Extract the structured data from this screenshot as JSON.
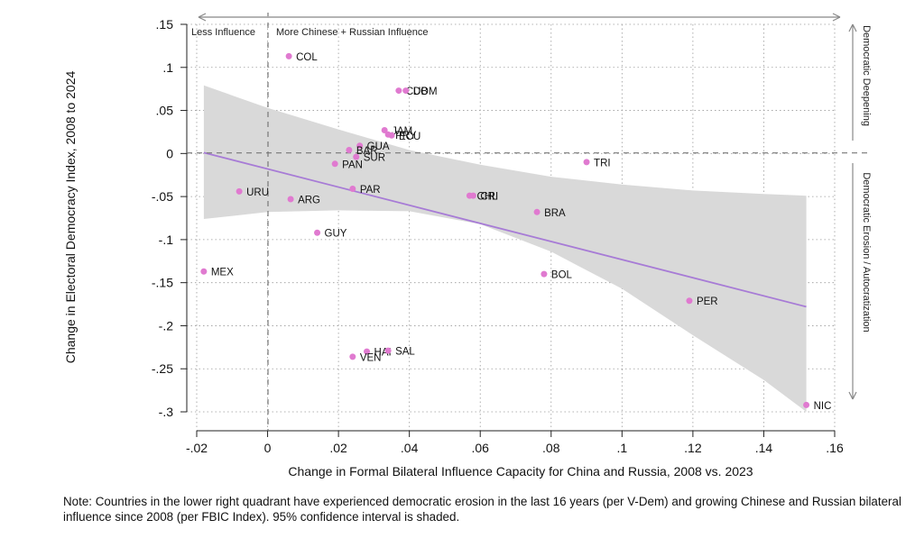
{
  "chart_data": {
    "type": "scatter",
    "xlabel": "Change in Formal Bilateral Influence Capacity for China and Russia, 2008 vs. 2023",
    "ylabel": "Change in Electoral Democracy Index, 2008 to 2024",
    "xlim": [
      -0.02,
      0.16
    ],
    "ylim": [
      -0.3,
      0.15
    ],
    "x_ticks": [
      {
        "value": -0.02,
        "label": "-.02"
      },
      {
        "value": 0,
        "label": "0"
      },
      {
        "value": 0.02,
        "label": ".02"
      },
      {
        "value": 0.04,
        "label": ".04"
      },
      {
        "value": 0.06,
        "label": ".06"
      },
      {
        "value": 0.08,
        "label": ".08"
      },
      {
        "value": 0.1,
        "label": ".1"
      },
      {
        "value": 0.12,
        "label": ".12"
      },
      {
        "value": 0.14,
        "label": ".14"
      },
      {
        "value": 0.16,
        "label": ".16"
      }
    ],
    "y_ticks": [
      {
        "value": 0.15,
        "label": ".15"
      },
      {
        "value": 0.1,
        "label": ".1"
      },
      {
        "value": 0.05,
        "label": ".05"
      },
      {
        "value": 0,
        "label": "0"
      },
      {
        "value": -0.05,
        "label": "-.05"
      },
      {
        "value": -0.1,
        "label": "-.1"
      },
      {
        "value": -0.15,
        "label": "-.15"
      },
      {
        "value": -0.2,
        "label": "-.2"
      },
      {
        "value": -0.25,
        "label": "-.25"
      },
      {
        "value": -0.3,
        "label": "-.3"
      }
    ],
    "grid": true,
    "points": [
      {
        "label": "COL",
        "x": 0.006,
        "y": 0.113
      },
      {
        "label": "CUB",
        "x": 0.037,
        "y": 0.073
      },
      {
        "label": "DOM",
        "x": 0.039,
        "y": 0.073
      },
      {
        "label": "JAM",
        "x": 0.033,
        "y": 0.027
      },
      {
        "label": "PRY",
        "x": 0.034,
        "y": 0.022
      },
      {
        "label": "ECU",
        "x": 0.035,
        "y": 0.021
      },
      {
        "label": "GUA",
        "x": 0.026,
        "y": 0.009
      },
      {
        "label": "BAR",
        "x": 0.023,
        "y": 0.004
      },
      {
        "label": "SUR",
        "x": 0.025,
        "y": -0.004
      },
      {
        "label": "PAN",
        "x": 0.019,
        "y": -0.012
      },
      {
        "label": "TRI",
        "x": 0.09,
        "y": -0.01
      },
      {
        "label": "URU",
        "x": -0.008,
        "y": -0.044
      },
      {
        "label": "ARG",
        "x": 0.0065,
        "y": -0.053
      },
      {
        "label": "PAR",
        "x": 0.024,
        "y": -0.041
      },
      {
        "label": "CHL",
        "x": 0.057,
        "y": -0.049
      },
      {
        "label": "CRI",
        "x": 0.058,
        "y": -0.049
      },
      {
        "label": "BRA",
        "x": 0.076,
        "y": -0.068
      },
      {
        "label": "GUY",
        "x": 0.014,
        "y": -0.092
      },
      {
        "label": "MEX",
        "x": -0.018,
        "y": -0.137
      },
      {
        "label": "BOL",
        "x": 0.078,
        "y": -0.14
      },
      {
        "label": "PER",
        "x": 0.119,
        "y": -0.171
      },
      {
        "label": "HAI",
        "x": 0.028,
        "y": -0.23
      },
      {
        "label": "SAL",
        "x": 0.034,
        "y": -0.229
      },
      {
        "label": "VEN",
        "x": 0.024,
        "y": -0.236
      },
      {
        "label": "NIC",
        "x": 0.152,
        "y": -0.292
      }
    ],
    "fit_line": {
      "x": [
        -0.018,
        0.152
      ],
      "y": [
        0.001,
        -0.178
      ]
    },
    "confidence_band": {
      "x": [
        -0.018,
        0.0,
        0.02,
        0.04,
        0.06,
        0.08,
        0.1,
        0.12,
        0.14,
        0.152
      ],
      "upper": [
        0.079,
        0.053,
        0.028,
        0.004,
        -0.013,
        -0.027,
        -0.036,
        -0.043,
        -0.047,
        -0.049
      ],
      "lower": [
        -0.076,
        -0.068,
        -0.066,
        -0.067,
        -0.082,
        -0.114,
        -0.157,
        -0.211,
        -0.263,
        -0.3
      ]
    },
    "colors": {
      "point": "#e07ad0",
      "fit_line": "#a77bd6",
      "band": "#d9d9d9",
      "grid": "#9a9a9a"
    }
  },
  "annotations": {
    "less_influence": "Less Influence",
    "more_influence": "More Chinese + Russian Influence",
    "democratic_deepening": "Democratic Deepening",
    "democratic_erosion": "Democratic Erosion  /  Autocratization"
  },
  "note": "Note: Countries in the lower right quadrant have experienced democratic erosion in the last 16 years (per V-Dem) and growing Chinese and Russian bilateral influence since 2008 (per FBIC Index). 95% confidence interval is shaded."
}
